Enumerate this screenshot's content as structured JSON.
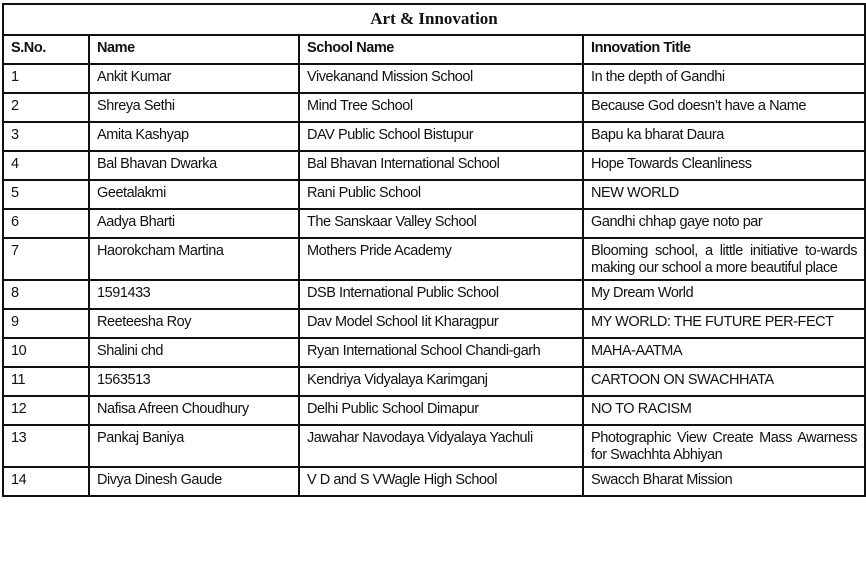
{
  "title": "Art & Innovation",
  "headers": [
    "S.No.",
    "Name",
    "School Name",
    "Innovation Title"
  ],
  "rows": [
    [
      "1",
      "Ankit Kumar",
      "Vivekanand Mission School",
      "In the depth of Gandhi"
    ],
    [
      "2",
      "Shreya Sethi",
      "Mind Tree School",
      "Because God doesn’t have a Name"
    ],
    [
      "3",
      "Amita Kashyap",
      "DAV Public School Bistupur",
      "Bapu ka bharat Daura"
    ],
    [
      "4",
      "Bal Bhavan Dwarka",
      "Bal Bhavan International School",
      "Hope Towards Cleanliness"
    ],
    [
      "5",
      "Geetalakmi",
      "Rani Public School",
      "NEW WORLD"
    ],
    [
      "6",
      "Aadya Bharti",
      "The Sanskaar Valley School",
      "Gandhi chhap gaye noto par"
    ],
    [
      "7",
      "Haorokcham Martina",
      "Mothers Pride Academy",
      "Blooming school, a little initiative to-wards making our school a more beautiful place"
    ],
    [
      "8",
      "1591433",
      "DSB International Public School",
      "My Dream World"
    ],
    [
      "9",
      "Reeteesha Roy",
      "Dav Model School Iit Kharagpur",
      "MY WORLD: THE FUTURE PER-FECT"
    ],
    [
      "10",
      "Shalini chd",
      "Ryan International School Chandi-garh",
      "MAHA-AATMA"
    ],
    [
      "11",
      "1563513",
      "Kendriya Vidyalaya Karimganj",
      "CARTOON ON SWACHHATA"
    ],
    [
      "12",
      "Nafisa Afreen Choudhury",
      "Delhi Public School Dimapur",
      "NO TO RACISM"
    ],
    [
      "13",
      "Pankaj Baniya",
      "Jawahar Navodaya Vidyalaya Yachuli",
      "Photographic View Create Mass Awarness for Swachhta Abhiyan"
    ],
    [
      "14",
      "Divya Dinesh Gaude",
      "V D and S VWagle High School",
      "Swacch Bharat Mission"
    ]
  ]
}
